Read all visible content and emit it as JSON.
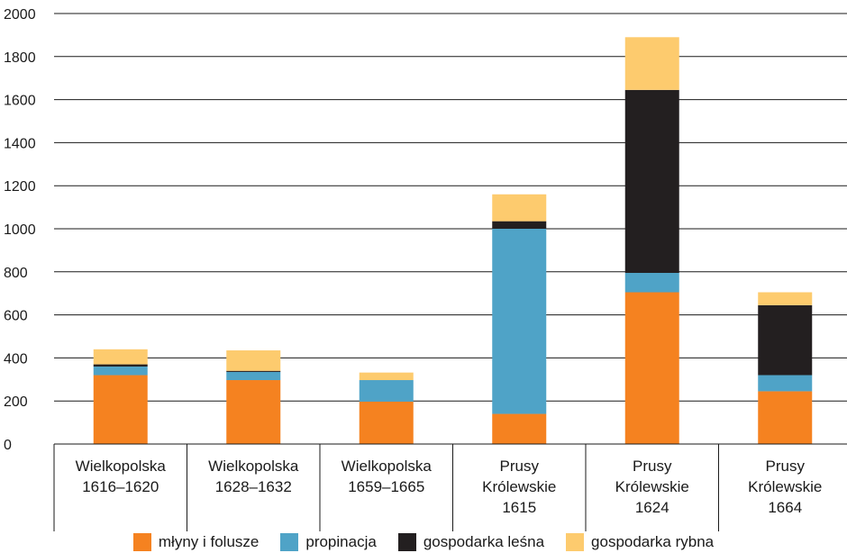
{
  "chart_data": {
    "type": "bar",
    "stacked": true,
    "categories": [
      [
        "Wielkopolska",
        "1616–1620"
      ],
      [
        "Wielkopolska",
        "1628–1632"
      ],
      [
        "Wielkopolska",
        "1659–1665"
      ],
      [
        "Prusy",
        "Królewskie",
        "1615"
      ],
      [
        "Prusy",
        "Królewskie",
        "1624"
      ],
      [
        "Prusy",
        "Królewskie",
        "1664"
      ]
    ],
    "series": [
      {
        "name": "młyny i folusze",
        "color": "#F58220",
        "values": [
          320,
          297,
          197,
          140,
          705,
          245
        ]
      },
      {
        "name": "propinacja",
        "color": "#4FA3C7",
        "values": [
          40,
          38,
          100,
          860,
          90,
          75
        ]
      },
      {
        "name": "gospodarka leśna",
        "color": "#231F20",
        "values": [
          10,
          5,
          0,
          35,
          850,
          325
        ]
      },
      {
        "name": "gospodarka rybna",
        "color": "#FDCB6E",
        "values": [
          70,
          95,
          35,
          125,
          245,
          60
        ]
      }
    ],
    "yticks": [
      0,
      200,
      400,
      600,
      800,
      1000,
      1200,
      1400,
      1600,
      1800,
      2000
    ],
    "ylim": [
      0,
      2000
    ],
    "grid": true,
    "legend_position": "bottom",
    "title": "",
    "xlabel": "",
    "ylabel": ""
  }
}
